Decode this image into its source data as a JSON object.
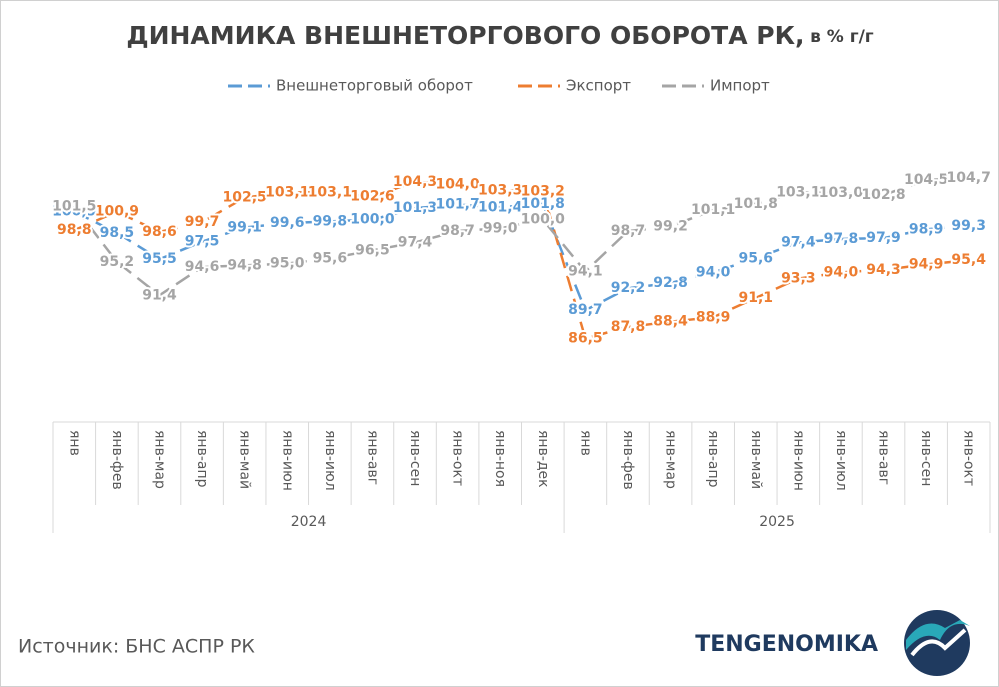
{
  "chart_data": {
    "type": "line",
    "title": "ДИНАМИКА ВНЕШНЕТОРГОВОГО ОБОРОТА РК,",
    "subtitle": "в % г/г",
    "category_groups": [
      {
        "name": "2024",
        "categories": [
          "янв",
          "янв-фев",
          "янв-мар",
          "янв-апр",
          "янв-май",
          "янв-июн",
          "янв-июл",
          "янв-авг",
          "янв-сен",
          "янв-окт",
          "янв-ноя",
          "янв-дек"
        ]
      },
      {
        "name": "2025",
        "categories": [
          "янв",
          "янв-фев",
          "янв-мар",
          "янв-апр",
          "янв-май",
          "янв-июн",
          "янв-июл",
          "янв-авг",
          "янв-сен",
          "янв-окт"
        ]
      }
    ],
    "ylim": [
      77,
      107
    ],
    "series": [
      {
        "name": "Внешнеторговый оборот",
        "color": "#5b9bd5",
        "values": [
          100.9,
          98.5,
          95.5,
          97.5,
          99.1,
          99.6,
          99.8,
          100.0,
          101.3,
          101.7,
          101.4,
          101.8,
          89.7,
          92.2,
          92.8,
          94.0,
          95.6,
          97.4,
          97.8,
          97.9,
          98.9,
          99.3
        ],
        "value_labels": [
          "100,9",
          "98,5",
          "95,5",
          "97,5",
          "99,1",
          "99,6",
          "99,8",
          "100,0",
          "101,3",
          "101,7",
          "101,4",
          "101,8",
          "89,7",
          "92,2",
          "92,8",
          "94,0",
          "95,6",
          "97,4",
          "97,8",
          "97,9",
          "98,9",
          "99,3"
        ]
      },
      {
        "name": "Экспорт",
        "color": "#ed7d31",
        "values": [
          98.8,
          100.9,
          98.6,
          99.7,
          102.5,
          103.1,
          103.1,
          102.6,
          104.3,
          104.0,
          103.3,
          103.2,
          86.5,
          87.8,
          88.4,
          88.9,
          91.1,
          93.3,
          94.0,
          94.3,
          94.9,
          95.4
        ],
        "value_labels": [
          "98,8",
          "100,9",
          "98,6",
          "99,7",
          "102,5",
          "103,1",
          "103,1",
          "102,6",
          "104,3",
          "104,0",
          "103,3",
          "103,2",
          "86,5",
          "87,8",
          "88,4",
          "88,9",
          "91,1",
          "93,3",
          "94,0",
          "94,3",
          "94,9",
          "95,4"
        ]
      },
      {
        "name": "Импорт",
        "color": "#a5a5a5",
        "values": [
          101.5,
          95.2,
          91.4,
          94.6,
          94.8,
          95.0,
          95.6,
          96.5,
          97.4,
          98.7,
          99.0,
          100.0,
          94.1,
          98.7,
          99.2,
          101.1,
          101.8,
          103.1,
          103.0,
          102.8,
          104.5,
          104.7
        ],
        "value_labels": [
          "101,5",
          "95,2",
          "91,4",
          "94,6",
          "94,8",
          "95,0",
          "95,6",
          "96,5",
          "97,4",
          "98,7",
          "99,0",
          "100,0",
          "94,1",
          "98,7",
          "99,2",
          "101,1",
          "101,8",
          "103,1",
          "103,0",
          "102,8",
          "104,5",
          "104,7"
        ]
      }
    ],
    "source": "Источник: БНС АСПР РК",
    "brand": "TENGENOMIKA"
  }
}
